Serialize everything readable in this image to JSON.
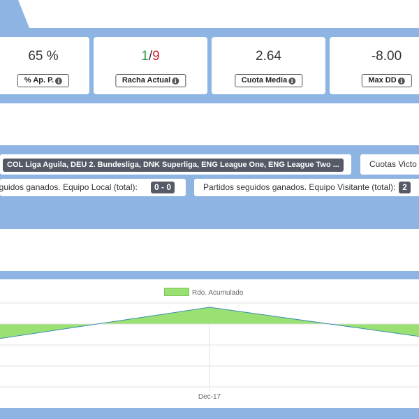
{
  "stats": [
    {
      "id": "ap",
      "value": "65 %",
      "label": "% Ap. P."
    },
    {
      "id": "racha",
      "value_win": "1",
      "value_sep": "/",
      "value_loss": "9",
      "label": "Racha Actual"
    },
    {
      "id": "cuota",
      "value": "2.64",
      "label": "Cuota Media"
    },
    {
      "id": "maxdd",
      "value": "-8.00",
      "label": "Max DD"
    }
  ],
  "filters": {
    "leagues": "COL Liga Aguila, DEU 2. Bundesliga, DNK Superliga, ENG League One, ENG League Two ...",
    "cuotas_label": "Cuotas Victo",
    "local_label": "eguidos ganados. Equipo Local (total):",
    "local_value": "0 - 0",
    "visit_label": "Partidos seguidos ganados. Equipo Visitante (total):",
    "visit_value": "2"
  },
  "colors": {
    "band": "#8db4e2",
    "fill": "#9be072",
    "line": "#3a8fb0",
    "positive": "#2e9e3e",
    "negative": "#cc2233"
  },
  "chart_data": {
    "type": "area",
    "x": [
      "",
      "Dec-17",
      ""
    ],
    "series": [
      {
        "name": "Rdo. Acumulado",
        "values": [
          -0.7,
          0.8,
          -0.6
        ]
      }
    ],
    "baseline": 0,
    "legend_position": "top",
    "xlabel": "",
    "ylabel": "",
    "grid": true
  }
}
